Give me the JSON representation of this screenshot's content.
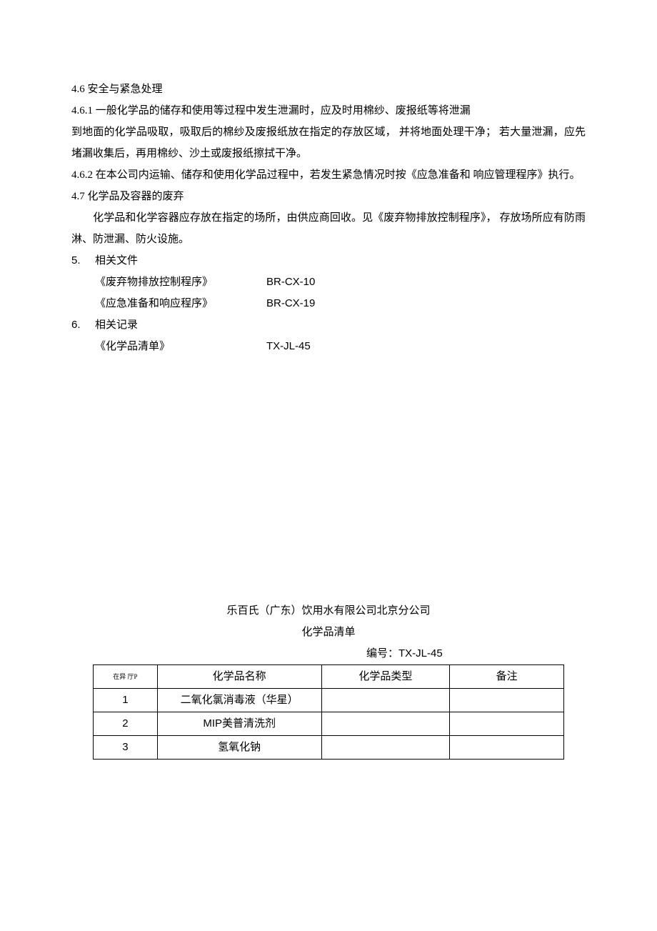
{
  "sections": {
    "s46": "4.6  安全与紧急处理",
    "s461": "4.6.1   一般化学品的储存和使用等过程中发生泄漏时，应及时用棉纱、废报纸等将泄漏",
    "s461b": "到地面的化学品吸取，吸取后的棉纱及废报纸放在指定的存放区域，  并将地面处理干净；  若大量泄漏，应先堵漏收集后，再用棉纱、沙土或废报纸擦拭干净。",
    "s462": "4.6.2   在本公司内运输、储存和使用化学品过程中，若发生紧急情况时按《应急准备和 响应管理程序》执行。",
    "s47": "4.7  化学品及容器的废弃",
    "s47body": "　　化学品和化学容器应存放在指定的场所，由供应商回收。见《废弃物排放控制程序》，  存放场所应有防雨淋、防泄漏、防火设施。",
    "s5num": "5.",
    "s5title": "相关文件",
    "ref1name": "《废弃物排放控制程序》",
    "ref1code": "BR-CX-10",
    "ref2name": "《应急准备和响应程序》",
    "ref2code": "BR-CX-19",
    "s6num": "6.",
    "s6title": "相关记录",
    "ref3name": "《化学品清单》",
    "ref3code": "TX-JL-45"
  },
  "subdoc": {
    "company": "乐百氏（广东）饮用水有限公司北京分公司",
    "title": "化学品清单",
    "docno_label": "编号：",
    "docno_code": "TX-JL-45"
  },
  "table": {
    "headers": {
      "seq": "在异 厅P",
      "name": "化学品名称",
      "type": "化学品类型",
      "note": "备注"
    },
    "rows": [
      {
        "seq": "1",
        "name_pre": "",
        "name_cn": "二氧化氯消毒液（华星）",
        "name_post": "",
        "type": "",
        "note": ""
      },
      {
        "seq": "2",
        "name_pre": "MIP",
        "name_cn": "美普清洗剂",
        "name_post": "",
        "type": "",
        "note": ""
      },
      {
        "seq": "3",
        "name_pre": "",
        "name_cn": "氢氧化钠",
        "name_post": "",
        "type": "",
        "note": ""
      }
    ]
  }
}
